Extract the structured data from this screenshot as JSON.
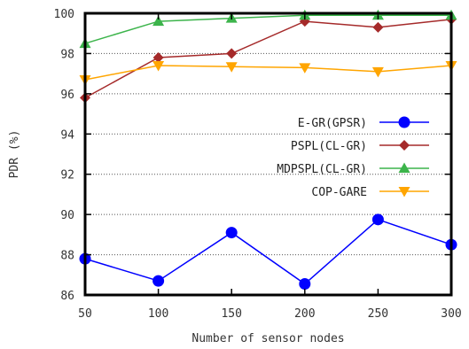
{
  "chart_data": {
    "type": "line",
    "xlabel": "Number of sensor nodes",
    "ylabel": "PDR (%)",
    "x": [
      50,
      100,
      150,
      200,
      250,
      300
    ],
    "xlim": [
      50,
      300
    ],
    "ylim": [
      86,
      100
    ],
    "xticks": [
      50,
      100,
      150,
      200,
      250,
      300
    ],
    "yticks": [
      86,
      88,
      90,
      92,
      94,
      96,
      98,
      100
    ],
    "grid": "horizontal dotted",
    "legend_position": "center-right",
    "series": [
      {
        "name": "E-GR(GPSR)",
        "color": "#0000ff",
        "marker": "circle",
        "values": [
          87.8,
          86.7,
          89.1,
          86.55,
          89.75,
          88.5
        ]
      },
      {
        "name": "PSPL(CL-GR)",
        "color": "#a52a2a",
        "marker": "diamond",
        "values": [
          95.8,
          97.8,
          98.0,
          99.6,
          99.3,
          99.7
        ]
      },
      {
        "name": "MDPSPL(CL-GR)",
        "color": "#3cb44b",
        "marker": "triangle-up",
        "values": [
          98.5,
          99.6,
          99.75,
          99.9,
          99.9,
          99.9
        ]
      },
      {
        "name": "COP-GARE",
        "color": "#ffa500",
        "marker": "triangle-down",
        "values": [
          96.7,
          97.4,
          97.35,
          97.3,
          97.1,
          97.4
        ]
      }
    ]
  }
}
